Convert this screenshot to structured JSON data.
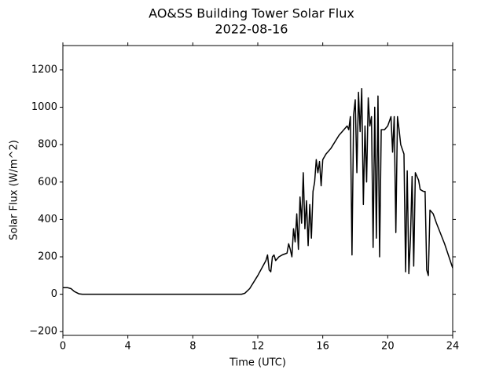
{
  "chart_data": {
    "type": "line",
    "title": "AO&SS Building Tower Solar Flux",
    "subtitle": "2022-08-16",
    "xlabel": "Time (UTC)",
    "ylabel": "Solar Flux (W/m^2)",
    "xlim": [
      0,
      24
    ],
    "xticks": [
      0,
      4,
      8,
      12,
      16,
      20,
      24
    ],
    "ylim": [
      -220,
      1330
    ],
    "yticks": [
      {
        "value": -200,
        "label": "−200"
      },
      0,
      200,
      400,
      600,
      800,
      1000,
      1200
    ],
    "grid": false,
    "series": [
      {
        "color": "#000000",
        "x": [
          0,
          0.3,
          0.5,
          0.7,
          1.0,
          1.2,
          11.0,
          11.2,
          11.5,
          12.0,
          12.5,
          12.6,
          12.7,
          12.8,
          12.9,
          13.0,
          13.1,
          13.3,
          13.5,
          13.8,
          13.9,
          14.0,
          14.1,
          14.2,
          14.3,
          14.4,
          14.5,
          14.6,
          14.7,
          14.8,
          14.9,
          15.0,
          15.1,
          15.2,
          15.3,
          15.4,
          15.5,
          15.6,
          15.7,
          15.8,
          15.9,
          16.0,
          16.2,
          16.5,
          17.0,
          17.3,
          17.5,
          17.6,
          17.7,
          17.8,
          17.9,
          18.0,
          18.1,
          18.2,
          18.3,
          18.4,
          18.5,
          18.6,
          18.7,
          18.8,
          18.9,
          19.0,
          19.1,
          19.2,
          19.3,
          19.4,
          19.5,
          19.6,
          19.8,
          20.0,
          20.2,
          20.3,
          20.4,
          20.5,
          20.6,
          20.7,
          20.8,
          21.0,
          21.1,
          21.2,
          21.3,
          21.4,
          21.5,
          21.6,
          21.7,
          21.9,
          22.0,
          22.2,
          22.3,
          22.4,
          22.5,
          22.6,
          22.8,
          23.0,
          23.5,
          24
        ],
        "values": [
          35,
          35,
          30,
          15,
          2,
          0,
          0,
          5,
          30,
          100,
          180,
          210,
          130,
          120,
          200,
          210,
          180,
          200,
          210,
          220,
          270,
          240,
          200,
          350,
          280,
          430,
          240,
          520,
          380,
          650,
          350,
          500,
          260,
          480,
          300,
          550,
          600,
          720,
          650,
          710,
          580,
          720,
          750,
          780,
          850,
          880,
          900,
          880,
          950,
          210,
          960,
          1040,
          650,
          1080,
          870,
          1100,
          480,
          900,
          600,
          1050,
          900,
          950,
          250,
          1000,
          300,
          1060,
          200,
          880,
          880,
          900,
          950,
          760,
          950,
          330,
          950,
          880,
          800,
          750,
          120,
          660,
          110,
          300,
          630,
          150,
          650,
          610,
          560,
          550,
          550,
          130,
          100,
          450,
          430,
          380,
          270,
          140
        ]
      }
    ]
  }
}
